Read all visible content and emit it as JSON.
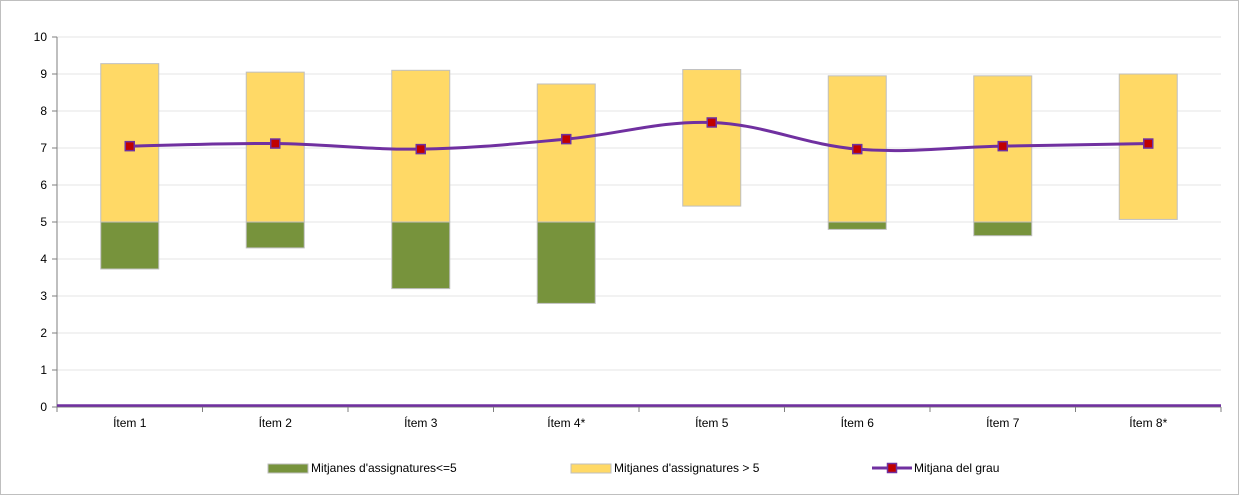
{
  "chart_data": {
    "type": "bar",
    "categories": [
      "Ítem 1",
      "Ítem 2",
      "Ítem 3",
      "Ítem 4*",
      "Ítem 5",
      "Ítem 6",
      "Ítem 7",
      "Ítem 8*"
    ],
    "series": [
      {
        "name": "Mitjanes d'assignatures<=5",
        "kind": "floating-bar",
        "low": [
          3.73,
          4.3,
          3.2,
          2.8,
          null,
          4.8,
          4.63,
          null
        ],
        "high": [
          5,
          5,
          5,
          5,
          null,
          5,
          5,
          null
        ]
      },
      {
        "name": "Mitjanes d'assignatures > 5",
        "kind": "floating-bar",
        "low": [
          5,
          5,
          5,
          5,
          5.43,
          5,
          5,
          5.07
        ],
        "high": [
          9.28,
          9.05,
          9.1,
          8.73,
          9.12,
          8.95,
          8.95,
          9.0
        ]
      },
      {
        "name": "Mitjana del grau",
        "kind": "line",
        "values": [
          7.05,
          7.12,
          6.97,
          7.24,
          7.69,
          6.97,
          7.05,
          7.12
        ]
      }
    ],
    "ylim": [
      0,
      10
    ],
    "yticks": [
      "0",
      "1",
      "2",
      "3",
      "4",
      "5",
      "6",
      "7",
      "8",
      "9",
      "10"
    ],
    "grid": true,
    "legend_position": "bottom",
    "colors": {
      "low_bar": "#77933c",
      "high_bar": "#ffd966",
      "line": "#7030a0",
      "marker": "#c00000",
      "grid": "#e6e6e6",
      "axis": "#7f7f7f"
    }
  }
}
